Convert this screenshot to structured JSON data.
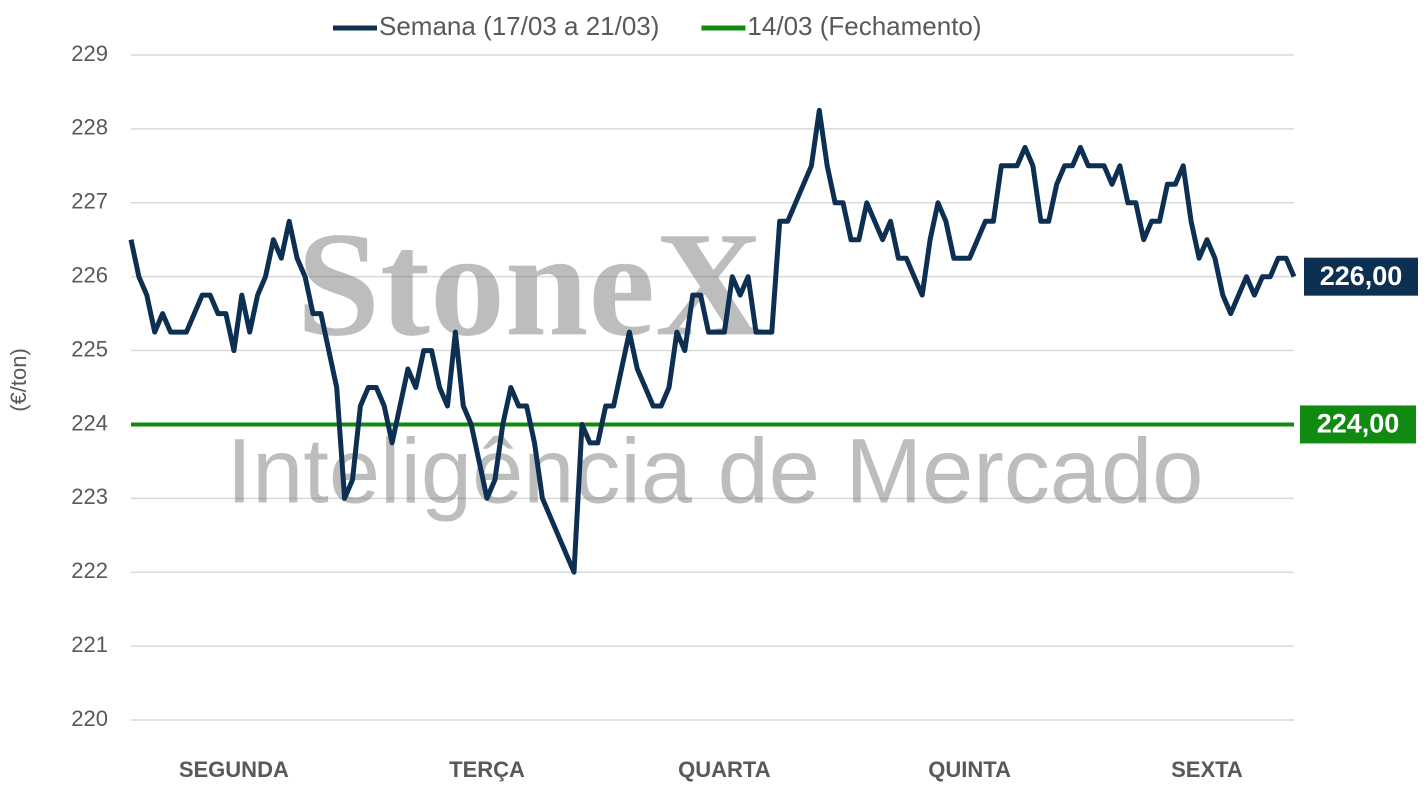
{
  "chart_data": {
    "type": "line",
    "y_axis_label": "(€/ton)",
    "watermark": {
      "brand": "StoneX",
      "tagline": "Inteligência de Mercado"
    },
    "categories": [
      null,
      null,
      null,
      null,
      null,
      null,
      null,
      null,
      null,
      null,
      null,
      null,
      null,
      "SEGUNDA",
      null,
      null,
      null,
      null,
      null,
      null,
      null,
      null,
      null,
      null,
      null,
      null,
      null,
      null,
      null,
      null,
      null,
      null,
      null,
      null,
      null,
      null,
      null,
      null,
      null,
      null,
      null,
      null,
      null,
      null,
      null,
      "TERÇA",
      null,
      null,
      null,
      null,
      null,
      null,
      null,
      null,
      null,
      null,
      null,
      null,
      null,
      null,
      null,
      null,
      null,
      null,
      null,
      null,
      null,
      null,
      null,
      null,
      null,
      null,
      null,
      null,
      null,
      "QUARTA",
      null,
      null,
      null,
      null,
      null,
      null,
      null,
      null,
      null,
      null,
      null,
      null,
      null,
      null,
      null,
      null,
      null,
      null,
      null,
      null,
      null,
      null,
      null,
      null,
      null,
      null,
      null,
      null,
      null,
      null,
      "QUINTA",
      null,
      null,
      null,
      null,
      null,
      null,
      null,
      null,
      null,
      null,
      null,
      null,
      null,
      null,
      null,
      null,
      null,
      null,
      null,
      null,
      null,
      null,
      null,
      null,
      null,
      null,
      null,
      null,
      null,
      "SEXTA",
      null,
      null,
      null,
      null,
      null,
      null,
      null,
      null,
      null,
      null,
      null
    ],
    "series": [
      {
        "name": "Semana (17/03 a 21/03)",
        "color": "#0d2f52",
        "end_label": "226,00",
        "values": [
          226.5,
          226.0,
          225.75,
          225.25,
          225.5,
          225.25,
          225.25,
          225.25,
          225.5,
          225.75,
          225.75,
          225.5,
          225.5,
          225.0,
          225.75,
          225.25,
          225.75,
          226.0,
          226.5,
          226.25,
          226.75,
          226.25,
          226.0,
          225.5,
          225.5,
          225.0,
          224.5,
          223.0,
          223.25,
          224.25,
          224.5,
          224.5,
          224.25,
          223.75,
          224.25,
          224.75,
          224.5,
          225.0,
          225.0,
          224.5,
          224.25,
          225.25,
          224.25,
          224.0,
          223.5,
          223.0,
          223.25,
          224.0,
          224.5,
          224.25,
          224.25,
          223.75,
          223.0,
          222.75,
          222.5,
          222.25,
          222.0,
          224.0,
          223.75,
          223.75,
          224.25,
          224.25,
          224.75,
          225.25,
          224.75,
          224.5,
          224.25,
          224.25,
          224.5,
          225.25,
          225.0,
          225.75,
          225.75,
          225.25,
          225.25,
          225.25,
          226.0,
          225.75,
          226.0,
          225.25,
          225.25,
          225.25,
          226.75,
          226.75,
          227.0,
          227.25,
          227.5,
          228.25,
          227.5,
          227.0,
          227.0,
          226.5,
          226.5,
          227.0,
          226.75,
          226.5,
          226.75,
          226.25,
          226.25,
          226.0,
          225.75,
          226.5,
          227.0,
          226.75,
          226.25,
          226.25,
          226.25,
          226.5,
          226.75,
          226.75,
          227.5,
          227.5,
          227.5,
          227.75,
          227.5,
          226.75,
          226.75,
          227.25,
          227.5,
          227.5,
          227.75,
          227.5,
          227.5,
          227.5,
          227.25,
          227.5,
          227.0,
          227.0,
          226.5,
          226.75,
          226.75,
          227.25,
          227.25,
          227.5,
          226.75,
          226.25,
          226.5,
          226.25,
          225.75,
          225.5,
          225.75,
          226.0,
          225.75,
          226.0,
          226.0,
          226.25,
          226.25,
          226.0
        ]
      }
    ],
    "reference_lines": [
      {
        "name": "14/03 (Fechamento)",
        "color": "#108a10",
        "value": 224,
        "label": "224,00"
      }
    ],
    "ylim": [
      220,
      229
    ],
    "yticks": [
      220,
      221,
      222,
      223,
      224,
      225,
      226,
      227,
      228,
      229
    ],
    "grid": true,
    "legend": "top"
  }
}
